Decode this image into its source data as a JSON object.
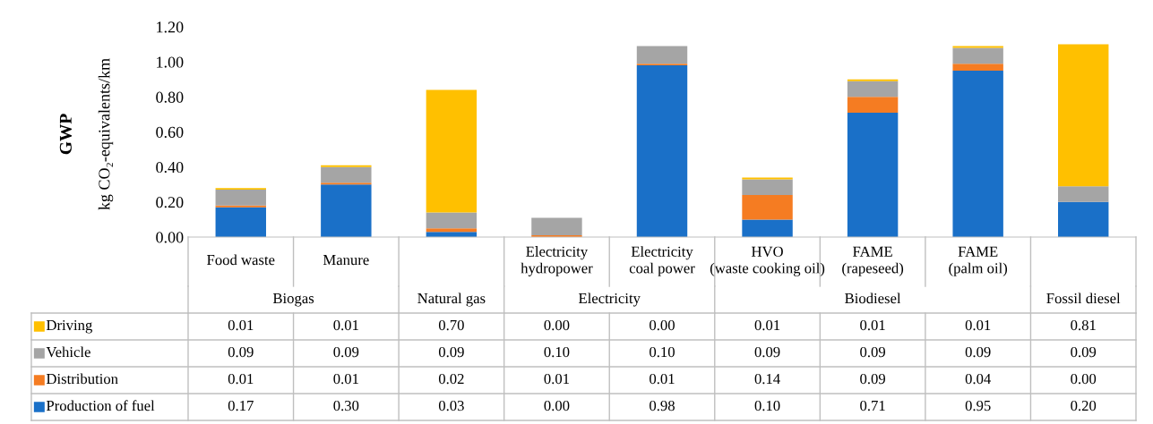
{
  "chart_data": {
    "type": "bar",
    "stacked": true,
    "title": "GWP",
    "ylabel": "kg CO₂-equivalents/km",
    "categories": [
      "Food waste",
      "Manure",
      null,
      "Electricity hydropower",
      "Electricity coal power",
      "HVO (waste cooking oil)",
      "FAME (rapeseed)",
      "FAME (palm oil)",
      null
    ],
    "annotations": [
      "Biogas",
      "Natural gas",
      "Electricity",
      "Biodiesel",
      "Fossil diesel"
    ],
    "series": [
      {
        "name": "Production of fuel",
        "color": "#1a70c8",
        "values": [
          0.17,
          0.3,
          0.03,
          0.0,
          0.98,
          0.1,
          0.71,
          0.95,
          0.2
        ],
        "value_labels": [
          "0.17",
          "0.30",
          "0.03",
          "0.00",
          "0.98",
          "0.10",
          "0.71",
          "0.95",
          "0.20"
        ]
      },
      {
        "name": "Distribution",
        "color": "#f57c22",
        "values": [
          0.01,
          0.01,
          0.02,
          0.01,
          0.01,
          0.14,
          0.09,
          0.04,
          0.0
        ],
        "value_labels": [
          "0.01",
          "0.01",
          "0.02",
          "0.01",
          "0.01",
          "0.14",
          "0.09",
          "0.04",
          "0.00"
        ]
      },
      {
        "name": "Vehicle",
        "color": "#a5a5a5",
        "values": [
          0.09,
          0.09,
          0.09,
          0.1,
          0.1,
          0.09,
          0.09,
          0.09,
          0.09
        ],
        "value_labels": [
          "0.09",
          "0.09",
          "0.09",
          "0.10",
          "0.10",
          "0.09",
          "0.09",
          "0.09",
          "0.09"
        ]
      },
      {
        "name": "Driving",
        "color": "#ffc000",
        "values": [
          0.01,
          0.01,
          0.7,
          0.0,
          0.0,
          0.01,
          0.01,
          0.01,
          0.81
        ],
        "value_labels": [
          "0.01",
          "0.01",
          "0.70",
          "0.00",
          "0.00",
          "0.01",
          "0.01",
          "0.01",
          "0.81"
        ]
      }
    ],
    "ylim": [
      0,
      1.2
    ],
    "yticks": [
      {
        "value": 0,
        "label": "0.00"
      },
      {
        "value": 0.2,
        "label": "0.20"
      },
      {
        "value": 0.4,
        "label": "0.40"
      },
      {
        "value": 0.6,
        "label": "0.60"
      },
      {
        "value": 0.8,
        "label": "0.80"
      },
      {
        "value": 1.0,
        "label": "1.00"
      },
      {
        "value": 1.2,
        "label": "1.20"
      }
    ],
    "grid": false,
    "legend": "bottom left"
  }
}
